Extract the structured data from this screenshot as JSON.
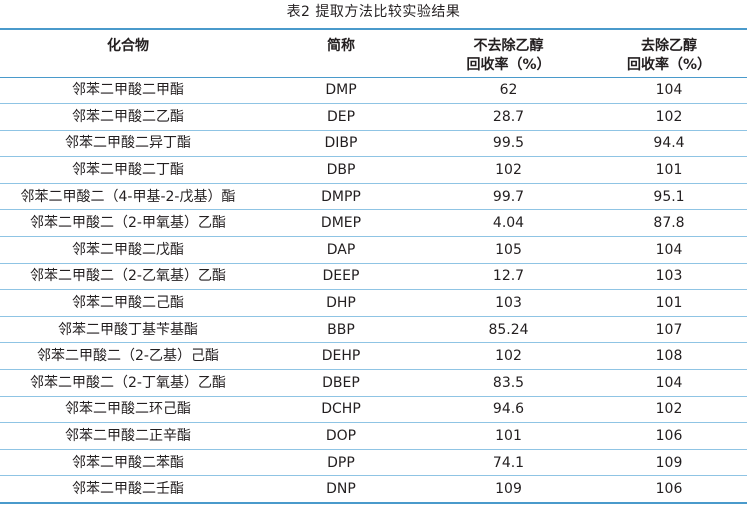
{
  "caption": "表2 提取方法比较实验结果",
  "headers": {
    "compound": "化合物",
    "abbr": "简称",
    "no_ethanol_line1": "不去除乙醇",
    "no_ethanol_line2": "回收率（%）",
    "with_ethanol_line1": "去除乙醇",
    "with_ethanol_line2": "回收率（%）"
  },
  "rows": [
    {
      "compound": "邻苯二甲酸二甲酯",
      "abbr": "DMP",
      "no_removal": "62",
      "removal": "104"
    },
    {
      "compound": "邻苯二甲酸二乙酯",
      "abbr": "DEP",
      "no_removal": "28.7",
      "removal": "102"
    },
    {
      "compound": "邻苯二甲酸二异丁酯",
      "abbr": "DIBP",
      "no_removal": "99.5",
      "removal": "94.4"
    },
    {
      "compound": "邻苯二甲酸二丁酯",
      "abbr": "DBP",
      "no_removal": "102",
      "removal": "101"
    },
    {
      "compound": "邻苯二甲酸二（4-甲基-2-戊基）酯",
      "abbr": "DMPP",
      "no_removal": "99.7",
      "removal": "95.1"
    },
    {
      "compound": "邻苯二甲酸二（2-甲氧基）乙酯",
      "abbr": "DMEP",
      "no_removal": "4.04",
      "removal": "87.8"
    },
    {
      "compound": "邻苯二甲酸二戊酯",
      "abbr": "DAP",
      "no_removal": "105",
      "removal": "104"
    },
    {
      "compound": "邻苯二甲酸二（2-乙氧基）乙酯",
      "abbr": "DEEP",
      "no_removal": "12.7",
      "removal": "103"
    },
    {
      "compound": "邻苯二甲酸二己酯",
      "abbr": "DHP",
      "no_removal": "103",
      "removal": "101"
    },
    {
      "compound": "邻苯二甲酸丁基苄基酯",
      "abbr": "BBP",
      "no_removal": "85.24",
      "removal": "107"
    },
    {
      "compound": "邻苯二甲酸二（2-乙基）己酯",
      "abbr": "DEHP",
      "no_removal": "102",
      "removal": "108"
    },
    {
      "compound": "邻苯二甲酸二（2-丁氧基）乙酯",
      "abbr": "DBEP",
      "no_removal": "83.5",
      "removal": "104"
    },
    {
      "compound": "邻苯二甲酸二环己酯",
      "abbr": "DCHP",
      "no_removal": "94.6",
      "removal": "102"
    },
    {
      "compound": "邻苯二甲酸二正辛酯",
      "abbr": "DOP",
      "no_removal": "101",
      "removal": "106"
    },
    {
      "compound": "邻苯二甲酸二苯酯",
      "abbr": "DPP",
      "no_removal": "74.1",
      "removal": "109"
    },
    {
      "compound": "邻苯二甲酸二壬酯",
      "abbr": "DNP",
      "no_removal": "109",
      "removal": "106"
    }
  ]
}
